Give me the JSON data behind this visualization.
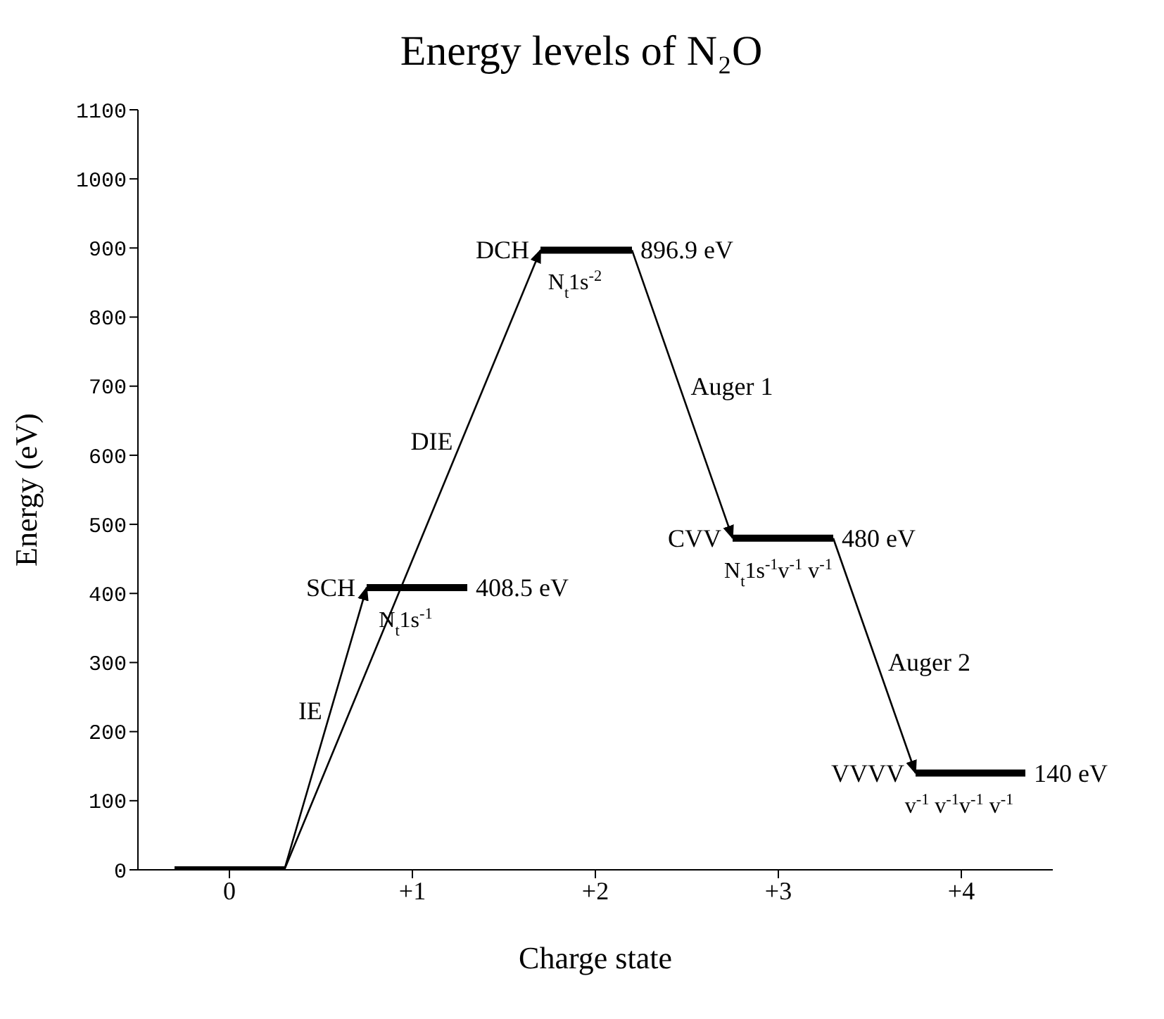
{
  "chart_data": {
    "type": "line",
    "title": "Energy levels of N₂O",
    "xlabel": "Charge state",
    "ylabel": "Energy (eV)",
    "xlim": [
      -0.5,
      4.5
    ],
    "xticks": [
      {
        "value": 0,
        "label": "0"
      },
      {
        "value": 1,
        "label": "+1"
      },
      {
        "value": 2,
        "label": "+2"
      },
      {
        "value": 3,
        "label": "+3"
      },
      {
        "value": 4,
        "label": "+4"
      }
    ],
    "ylim": [
      0,
      1100
    ],
    "yticks": [
      0,
      100,
      200,
      300,
      400,
      500,
      600,
      700,
      800,
      900,
      1000,
      1100
    ],
    "marker": "none",
    "series": [
      {
        "color": "#000000",
        "x": [
          -0.3,
          0.3
        ],
        "values": [
          0,
          0
        ]
      },
      {
        "color": "#000000",
        "x": [
          0.75,
          1.3
        ],
        "values": [
          408.5,
          408.5
        ],
        "value_labels": [
          null,
          "408.5 eV"
        ]
      },
      {
        "color": "#000000",
        "x": [
          1.7,
          2.2
        ],
        "values": [
          896.9,
          896.9
        ],
        "value_labels": [
          null,
          "896.9 eV"
        ]
      },
      {
        "color": "#000000",
        "x": [
          2.75,
          3.3
        ],
        "values": [
          480,
          480
        ],
        "value_labels": [
          null,
          "480 eV"
        ]
      },
      {
        "color": "#000000",
        "x": [
          3.75,
          4.35
        ],
        "values": [
          140,
          140
        ],
        "value_labels": [
          null,
          "140 eV"
        ]
      }
    ],
    "annotations": [
      "SCH",
      "N$_{t}$1s$^{-1}$",
      "IE",
      "DIE",
      "DCH",
      "N$_{t}$1s$^{-2}$",
      "Auger 1",
      "CVV",
      {
        "text": "N$_{t}$1s$^{-1}$v$^{-1}$ v$^{-1}$",
        "x": 3,
        "y": 480
      },
      "Auger 2",
      "VVVV",
      "v$^{-1}$ v$^{-1}$v$^{-1}$ v$^{-1}$"
    ]
  }
}
